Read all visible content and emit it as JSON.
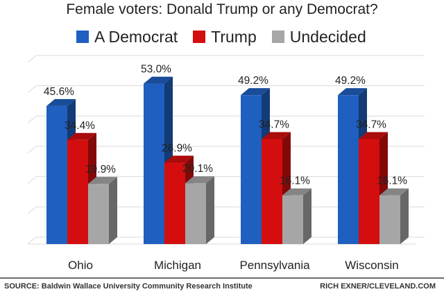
{
  "chart_data": {
    "type": "bar",
    "title": "Female voters: Donald Trump or any Democrat?",
    "categories": [
      "Ohio",
      "Michigan",
      "Pennsylvania",
      "Wisconsin"
    ],
    "series": [
      {
        "name": "A Democrat",
        "color": "#1f5fbf",
        "values": [
          45.6,
          53.0,
          49.2,
          49.2
        ],
        "labels": [
          "45.6%",
          "53.0%",
          "49.2%",
          "49.2%"
        ]
      },
      {
        "name": "Trump",
        "color": "#d40e0e",
        "values": [
          34.4,
          26.9,
          34.7,
          34.7
        ],
        "labels": [
          "34.4%",
          "26.9%",
          "34.7%",
          "34.7%"
        ]
      },
      {
        "name": "Undecided",
        "color": "#a6a6a6",
        "values": [
          19.9,
          20.1,
          16.1,
          16.1
        ],
        "labels": [
          "19.9%",
          "20.1%",
          "16.1%",
          "16.1%"
        ]
      }
    ],
    "ylim": [
      0,
      60
    ],
    "xlabel": "",
    "ylabel": "",
    "grid": true,
    "legend_position": "top"
  },
  "footer": {
    "source": "SOURCE: Baldwin Wallace University Community Research Institute",
    "credit": "RICH EXNER/CLEVELAND.COM"
  }
}
